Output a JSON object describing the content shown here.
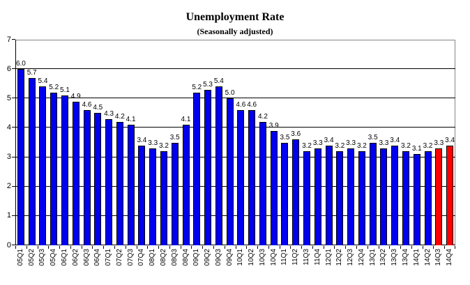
{
  "title": "Unemployment Rate",
  "subtitle": "(Seasonally adjusted)",
  "chart_data": {
    "type": "bar",
    "title": "Unemployment Rate",
    "subtitle": "(Seasonally adjusted)",
    "categories": [
      "05Q1",
      "05Q2",
      "05Q3",
      "05Q4",
      "06Q1",
      "06Q2",
      "06Q3",
      "06Q4",
      "07Q1",
      "07Q2",
      "07Q3",
      "07Q4",
      "08Q1",
      "08Q2",
      "08Q3",
      "08Q4",
      "09Q1",
      "09Q2",
      "09Q3",
      "09Q4",
      "10Q1",
      "10Q2",
      "10Q3",
      "10Q4",
      "11Q1",
      "11Q2",
      "11Q3",
      "11Q4",
      "12Q1",
      "12Q2",
      "12Q3",
      "12Q4",
      "13Q1",
      "13Q2",
      "13Q3",
      "13Q4",
      "14Q1",
      "14Q2",
      "14Q3",
      "14Q4"
    ],
    "values": [
      6.0,
      5.7,
      5.4,
      5.2,
      5.1,
      4.9,
      4.6,
      4.5,
      4.3,
      4.2,
      4.1,
      3.4,
      3.3,
      3.2,
      3.5,
      4.1,
      5.2,
      5.3,
      5.4,
      5.0,
      4.6,
      4.6,
      4.2,
      3.9,
      3.5,
      3.6,
      3.2,
      3.3,
      3.4,
      3.2,
      3.3,
      3.2,
      3.5,
      3.3,
      3.4,
      3.2,
      3.1,
      3.2,
      3.3,
      3.4
    ],
    "data_labels": true,
    "xlabel": "",
    "ylabel": "",
    "ylim": [
      0,
      7
    ],
    "yticks": [
      0,
      1,
      2,
      3,
      4,
      5,
      6,
      7
    ],
    "grid": "horizontal",
    "legend": "none",
    "bar_color": "#0000EE",
    "highlight_color": "#FF0000",
    "highlight_indices": [
      38,
      39
    ],
    "bar_border_color": "#000000",
    "gridline_color": "#000000",
    "plot_border_color": "#848484",
    "axis_color": "#000000"
  }
}
